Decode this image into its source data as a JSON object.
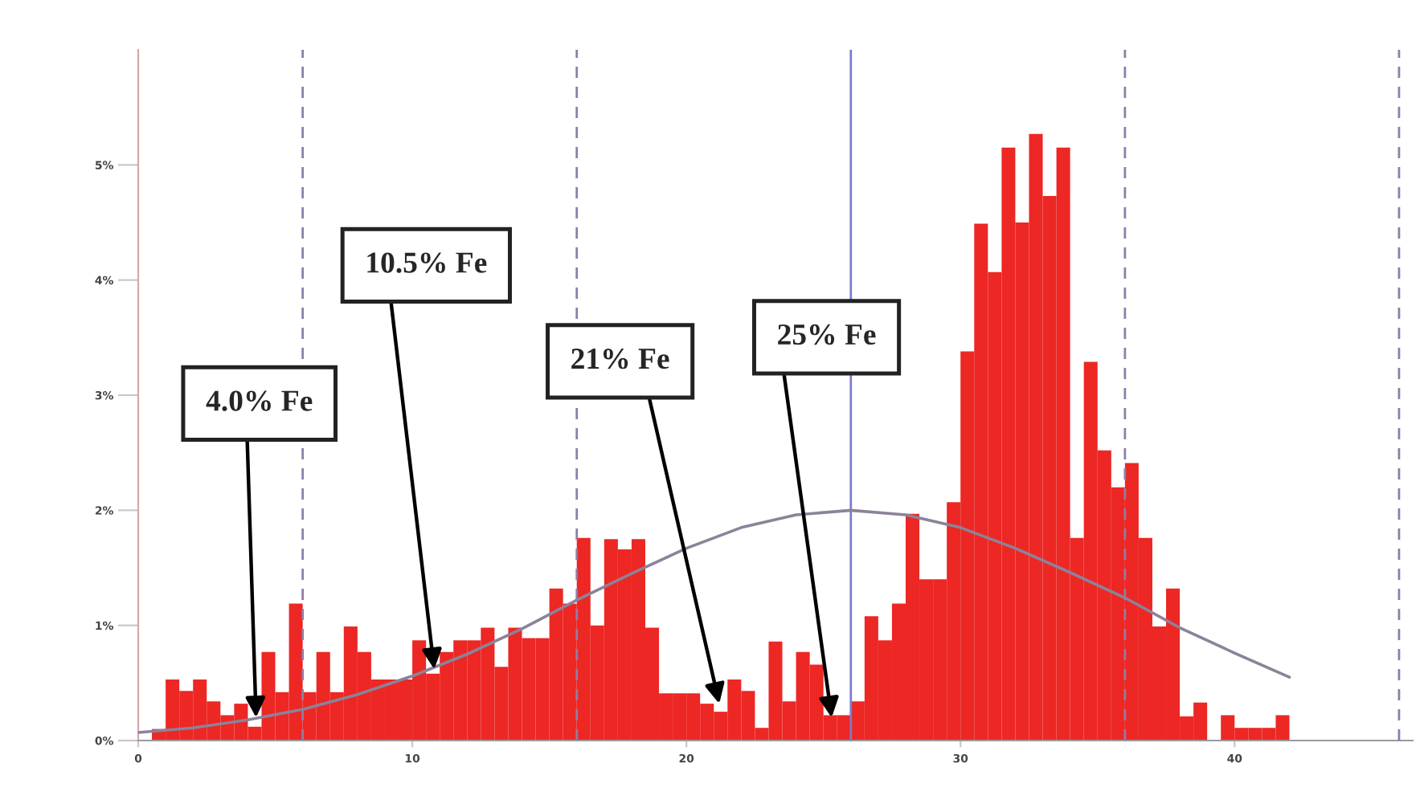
{
  "chart_data": {
    "type": "histogram",
    "series": [
      {
        "color": "#ec2724",
        "bins": [
          0.5,
          1,
          1.5,
          2,
          2.5,
          3,
          3.5,
          4,
          4.5,
          5,
          5.5,
          6,
          6.5,
          7,
          7.5,
          8,
          8.5,
          9,
          9.5,
          10,
          10.5,
          11,
          11.5,
          12,
          12.5,
          13,
          13.5,
          14,
          14.5,
          15,
          15.5,
          16,
          16.5,
          17,
          17.5,
          18,
          18.5,
          19,
          19.5,
          20,
          20.5,
          21,
          21.5,
          22,
          22.5,
          23,
          23.5,
          24,
          24.5,
          25,
          25.5,
          26,
          26.5,
          27,
          27.5,
          28,
          28.5,
          29,
          29.5,
          30,
          30.5,
          31,
          31.5,
          32,
          32.5,
          33,
          33.5,
          34,
          34.5,
          35,
          35.5,
          36,
          36.5,
          37,
          37.5,
          38,
          38.5,
          39,
          39.5,
          40,
          40.5,
          41,
          41.5,
          42
        ],
        "values": [
          0.1,
          0.53,
          0.43,
          0.53,
          0.34,
          0.22,
          0.32,
          0.12,
          0.77,
          0.42,
          1.19,
          0.42,
          0.77,
          0.42,
          0.99,
          0.77,
          0.53,
          0.53,
          0.53,
          0.87,
          0.58,
          0.77,
          0.87,
          0.87,
          0.98,
          0.64,
          0.98,
          0.89,
          0.89,
          1.32,
          1.19,
          1.76,
          1.0,
          1.75,
          1.66,
          1.75,
          0.98,
          0.41,
          0.41,
          0.41,
          0.32,
          0.25,
          0.53,
          0.43,
          0.11,
          0.86,
          0.34,
          0.77,
          0.66,
          0.22,
          0.22,
          0.34,
          1.08,
          0.87,
          1.19,
          1.97,
          1.4,
          1.4,
          2.07,
          3.38,
          4.49,
          4.07,
          5.15,
          4.5,
          5.27,
          4.73,
          5.15,
          1.76,
          3.29,
          2.52,
          2.2,
          2.41,
          1.76,
          0.99,
          1.32,
          0.21,
          0.33,
          0,
          0.22,
          0.11,
          0.11,
          0.11,
          0.22
        ]
      },
      {
        "type": "line",
        "color": "#8c8299",
        "x": [
          0,
          2,
          4,
          6,
          8,
          10,
          12,
          14,
          16,
          18,
          20,
          22,
          24,
          26,
          28,
          30,
          32,
          34,
          36,
          38,
          40,
          42
        ],
        "values": [
          0.07,
          0.11,
          0.18,
          0.27,
          0.4,
          0.56,
          0.75,
          0.97,
          1.22,
          1.45,
          1.67,
          1.85,
          1.96,
          2.0,
          1.96,
          1.85,
          1.67,
          1.46,
          1.24,
          0.98,
          0.76,
          0.55
        ]
      }
    ],
    "xlim": [
      0,
      46.5
    ],
    "ylim": [
      0,
      6
    ],
    "xticks": [
      0,
      10,
      20,
      30,
      40
    ],
    "yticks": [
      {
        "value": 0,
        "label": "0%"
      },
      {
        "value": 1,
        "label": "1%"
      },
      {
        "value": 2,
        "label": "2%"
      },
      {
        "value": 3,
        "label": "3%"
      },
      {
        "value": 4,
        "label": "4%"
      },
      {
        "value": 5,
        "label": "5%"
      }
    ],
    "ref_lines": [
      {
        "axis": "x",
        "value": 6,
        "color": "#8a80a8",
        "line_style": "dashed"
      },
      {
        "axis": "x",
        "value": 16,
        "color": "#8a80a8",
        "line_style": "dashed"
      },
      {
        "axis": "x",
        "value": 26,
        "color": "#7b7bd0",
        "line_style": "solid"
      },
      {
        "axis": "x",
        "value": 36,
        "color": "#8a80a8",
        "line_style": "dashed"
      },
      {
        "axis": "x",
        "value": 46,
        "color": "#8a80a8",
        "line_style": "dashed"
      }
    ],
    "annotations": [
      {
        "text": "4.0% Fe",
        "x": 4.3,
        "y": 0.2
      },
      {
        "text": "10.5% Fe",
        "x": 10.8,
        "y": 0.62
      },
      {
        "text": "21% Fe",
        "x": 21.2,
        "y": 0.32
      },
      {
        "text": "25% Fe",
        "x": 25.3,
        "y": 0.2
      }
    ]
  }
}
